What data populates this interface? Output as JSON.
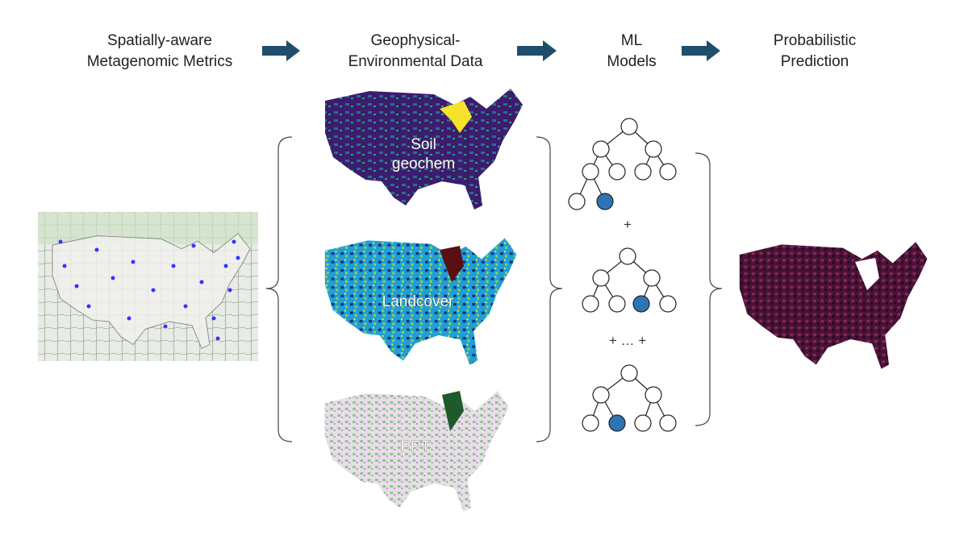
{
  "columns": [
    {
      "title_lines": [
        "Spatially-aware",
        "Metagenomic Metrics"
      ]
    },
    {
      "title_lines": [
        "Geophysical-",
        "Environmental Data"
      ]
    },
    {
      "title_lines": [
        "ML",
        "Models"
      ]
    },
    {
      "title_lines": [
        "Probabilistic",
        "Prediction"
      ]
    }
  ],
  "maps": [
    {
      "label_lines": [
        "Soil",
        "geochem"
      ]
    },
    {
      "label_lines": [
        "Landcover"
      ]
    },
    {
      "label_lines": [
        "PPT"
      ]
    }
  ],
  "operators": [
    "+",
    "+ … +"
  ]
}
